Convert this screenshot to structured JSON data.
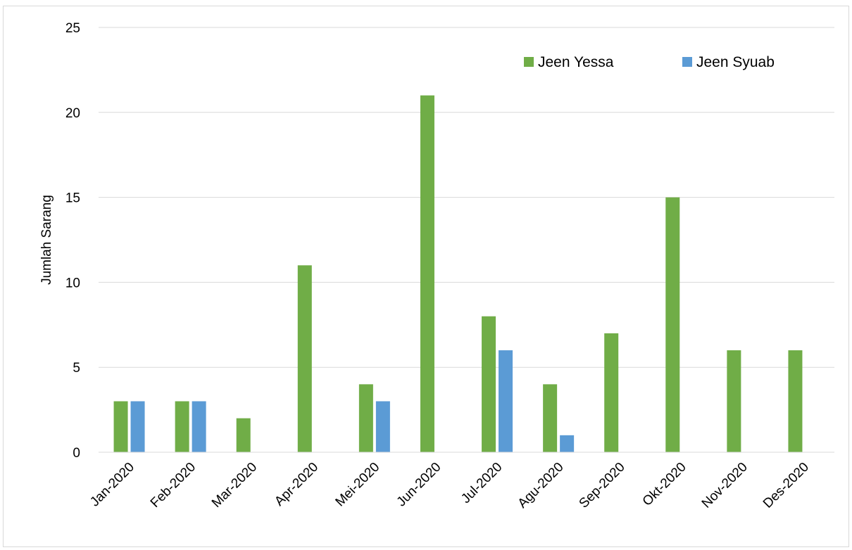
{
  "chart_data": {
    "type": "bar",
    "categories": [
      "Jan-2020",
      "Feb-2020",
      "Mar-2020",
      "Apr-2020",
      "Mei-2020",
      "Jun-2020",
      "Jul-2020",
      "Agu-2020",
      "Sep-2020",
      "Okt-2020",
      "Nov-2020",
      "Des-2020"
    ],
    "series": [
      {
        "name": "Jeen Yessa",
        "color": "#70ad47",
        "values": [
          3,
          3,
          2,
          11,
          4,
          21,
          8,
          4,
          7,
          15,
          6,
          6
        ]
      },
      {
        "name": "Jeen Syuab",
        "color": "#5b9bd5",
        "values": [
          3,
          3,
          0,
          0,
          3,
          0,
          6,
          1,
          0,
          0,
          0,
          0
        ]
      }
    ],
    "title": "",
    "xlabel": "",
    "ylabel": "Jumlah Sarang",
    "ylim": [
      0,
      25
    ],
    "yticks": [
      "0",
      "5",
      "10",
      "15",
      "20",
      "25"
    ],
    "grid": true,
    "legend_position": "top-right"
  }
}
